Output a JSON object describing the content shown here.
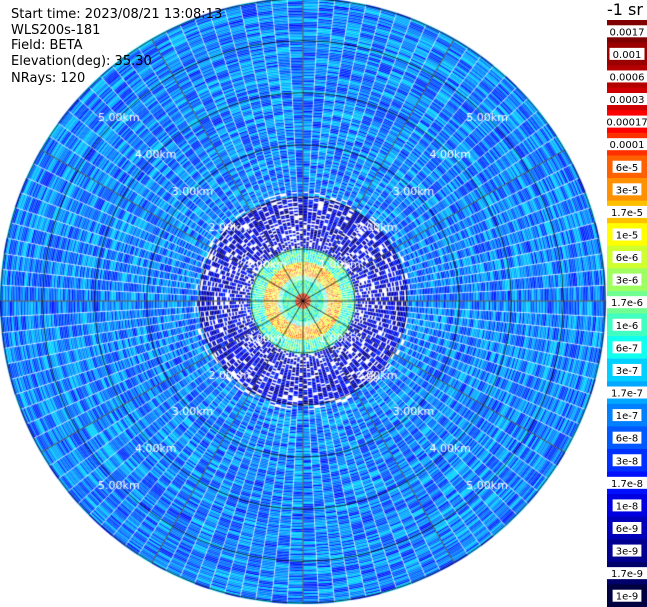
{
  "header": {
    "start_time": "Start time: 2023/08/21 13:08:13",
    "instrument": "WLS200s-181",
    "field": "Field: BETA",
    "elevation": "Elevation(deg): 35.30",
    "nrays": "NRays: 120"
  },
  "colorbar": {
    "units": "-1 sr",
    "labels": [
      "0.0017",
      "0.001",
      "0.0006",
      "0.0003",
      "0.00017",
      "0.0001",
      "6e-5",
      "3e-5",
      "1.7e-5",
      "1e-5",
      "6e-6",
      "3e-6",
      "1.7e-6",
      "1e-6",
      "6e-7",
      "3e-7",
      "1.7e-7",
      "1e-7",
      "6e-8",
      "3e-8",
      "1.7e-8",
      "1e-8",
      "6e-9",
      "3e-9",
      "1.7e-9",
      "1e-9"
    ],
    "colors": [
      "#800000",
      "#9a0000",
      "#b50000",
      "#d00000",
      "#ff0000",
      "#ff3000",
      "#ff6000",
      "#ff9000",
      "#ffc000",
      "#ffff00",
      "#d0ff30",
      "#a0ff60",
      "#70ff90",
      "#40ffc0",
      "#10ffef",
      "#00d0ff",
      "#00a8ff",
      "#0080ff",
      "#0058ff",
      "#0030ff",
      "#0010ff",
      "#0000e0",
      "#0000b8",
      "#000090",
      "#00006a",
      "#000040"
    ]
  },
  "chart_data": {
    "type": "heatmap",
    "subtype": "polar PPI",
    "nrays": 120,
    "range_rings_km": [
      1,
      2,
      3,
      4,
      5
    ],
    "range_ring_labels": [
      "1.00km",
      "2.00km",
      "3.00km",
      "4.00km",
      "5.00km"
    ],
    "max_range_km": 5.8,
    "colorscale": "log10 jet",
    "color_range": [
      1e-09,
      0.0017
    ],
    "field": "BETA",
    "value_regions": [
      {
        "range_km": [
          0.0,
          0.15
        ],
        "value": 0.0001
      },
      {
        "range_km": [
          0.15,
          0.45
        ],
        "value": 1e-06
      },
      {
        "range_km": [
          0.45,
          0.75
        ],
        "value": 1.7e-05
      },
      {
        "range_km": [
          0.75,
          1.0
        ],
        "value": 1e-06
      },
      {
        "range_km": [
          1.0,
          2.0
        ],
        "value": 1e-08
      },
      {
        "range_km": [
          2.0,
          5.8
        ],
        "value": 1e-07
      }
    ]
  }
}
